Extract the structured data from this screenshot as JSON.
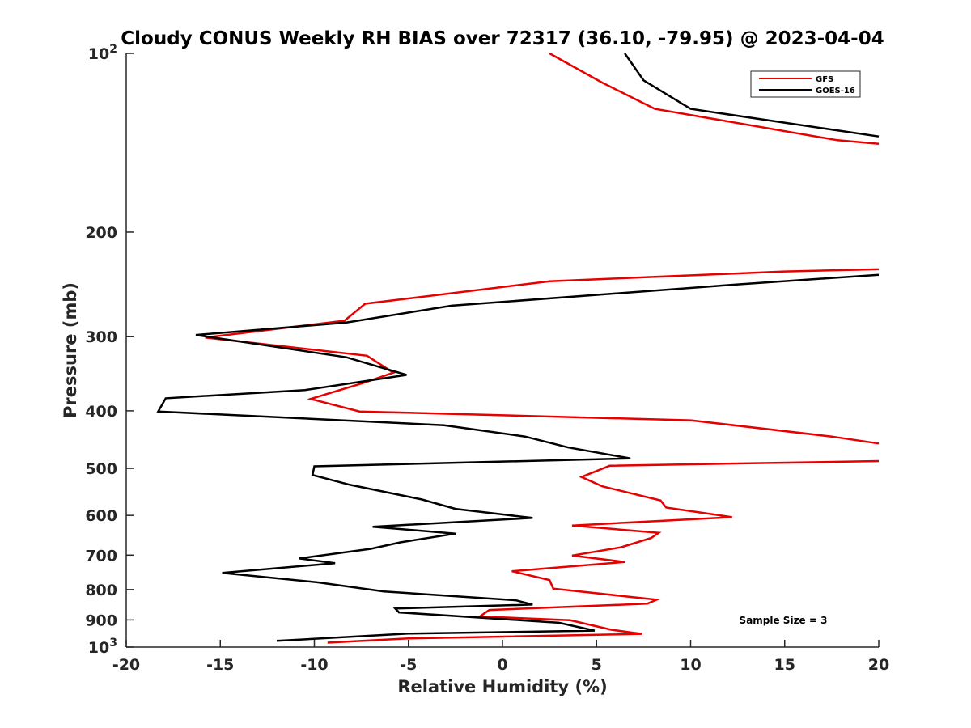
{
  "chart_data": {
    "type": "line",
    "title": "Cloudy CONUS Weekly RH BIAS over 72317 (36.10, -79.95) @ 2023-04-04",
    "xlabel": "Relative Humidity (%)",
    "ylabel": "Pressure (mb)",
    "xlim": [
      -20,
      20
    ],
    "ylim": [
      100,
      1000
    ],
    "yscale": "log",
    "y_reversed": true,
    "grid": false,
    "legend_position": "top-right",
    "x_ticks": [
      "-20",
      "-15",
      "-10",
      "-5",
      "0",
      "5",
      "10",
      "15",
      "20"
    ],
    "y_ticks": [
      {
        "value": 100,
        "base": "10",
        "exp": "2"
      },
      {
        "value": 200,
        "label": "200"
      },
      {
        "value": 300,
        "label": "300"
      },
      {
        "value": 400,
        "label": "400"
      },
      {
        "value": 500,
        "label": "500"
      },
      {
        "value": 600,
        "label": "600"
      },
      {
        "value": 700,
        "label": "700"
      },
      {
        "value": 800,
        "label": "800"
      },
      {
        "value": 900,
        "label": "900"
      },
      {
        "value": 1000,
        "base": "10",
        "exp": "3"
      }
    ],
    "series": [
      {
        "name": "GFS",
        "color": "#e60000",
        "points": [
          [
            2.5,
            100
          ],
          [
            5.3,
            112
          ],
          [
            8.1,
            124
          ],
          [
            17.8,
            140
          ],
          [
            20,
            142
          ],
          [
            null,
            null
          ],
          [
            20,
            231
          ],
          [
            15.0,
            233
          ],
          [
            2.5,
            242
          ],
          [
            -7.3,
            264
          ],
          [
            -8.4,
            282
          ],
          [
            -15.8,
            301
          ],
          [
            -7.2,
            323
          ],
          [
            -5.8,
            345
          ],
          [
            -7.4,
            359
          ],
          [
            -10.2,
            382
          ],
          [
            -7.6,
            401
          ],
          [
            10.0,
            415
          ],
          [
            17.5,
            442
          ],
          [
            20,
            454
          ],
          [
            null,
            null
          ],
          [
            20,
            486
          ],
          [
            5.7,
            495
          ],
          [
            4.2,
            517
          ],
          [
            5.3,
            536
          ],
          [
            8.4,
            566
          ],
          [
            8.7,
            582
          ],
          [
            12.2,
            604
          ],
          [
            3.7,
            624
          ],
          [
            8.3,
            642
          ],
          [
            7.9,
            655
          ],
          [
            6.3,
            679
          ],
          [
            3.7,
            701
          ],
          [
            6.5,
            719
          ],
          [
            0.5,
            745
          ],
          [
            2.5,
            771
          ],
          [
            2.7,
            797
          ],
          [
            8.2,
            832
          ],
          [
            7.7,
            845
          ],
          [
            -0.7,
            866
          ],
          [
            -1.2,
            888
          ],
          [
            3.6,
            901
          ],
          [
            5.8,
            935
          ],
          [
            7.4,
            950
          ],
          [
            -5.0,
            967
          ],
          [
            -9.3,
            983
          ]
        ]
      },
      {
        "name": "GOES-16",
        "color": "#000000",
        "points": [
          [
            6.5,
            100
          ],
          [
            7.5,
            111
          ],
          [
            10.0,
            124
          ],
          [
            20,
            138
          ],
          [
            null,
            null
          ],
          [
            20,
            236
          ],
          [
            12.5,
            245
          ],
          [
            -2.7,
            266
          ],
          [
            -8.3,
            284
          ],
          [
            -16.3,
            298
          ],
          [
            -8.3,
            325
          ],
          [
            -5.1,
            348
          ],
          [
            -10.5,
            369
          ],
          [
            -17.9,
            381
          ],
          [
            -18.3,
            401
          ],
          [
            -3.1,
            423
          ],
          [
            1.2,
            442
          ],
          [
            3.5,
            461
          ],
          [
            6.8,
            481
          ],
          [
            -10.0,
            496
          ],
          [
            -10.1,
            513
          ],
          [
            -8.1,
            533
          ],
          [
            -4.3,
            564
          ],
          [
            -2.5,
            585
          ],
          [
            1.6,
            606
          ],
          [
            -6.9,
            627
          ],
          [
            -2.5,
            644
          ],
          [
            -5.4,
            666
          ],
          [
            -7.0,
            683
          ],
          [
            -10.8,
            709
          ],
          [
            -8.9,
            722
          ],
          [
            -14.9,
            750
          ],
          [
            -9.8,
            778
          ],
          [
            -6.3,
            806
          ],
          [
            0.7,
            834
          ],
          [
            1.6,
            848
          ],
          [
            -5.7,
            861
          ],
          [
            -5.5,
            874
          ],
          [
            3.0,
            910
          ],
          [
            4.9,
            938
          ],
          [
            -5.0,
            949
          ],
          [
            -12.0,
            976
          ]
        ]
      }
    ],
    "annotations": [
      "Sample Size = 3"
    ]
  }
}
